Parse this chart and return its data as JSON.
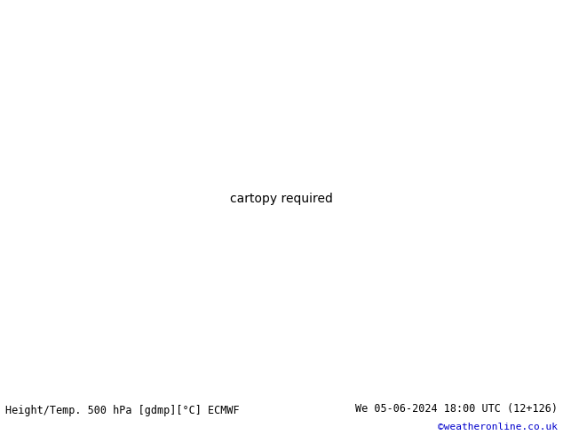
{
  "title_left": "Height/Temp. 500 hPa [gdmp][°C] ECMWF",
  "title_right": "We 05-06-2024 18:00 UTC (12+126)",
  "credit": "©weatheronline.co.uk",
  "land_color": "#c8f0a0",
  "sea_color": "#e8f4f8",
  "border_color": "#aaaaaa",
  "country_color": "#aaaaaa",
  "fig_width": 6.34,
  "fig_height": 4.9,
  "dpi": 100,
  "bottom_bar_color": "#ffffff",
  "bottom_text_color": "#000000",
  "credit_color": "#0000cc",
  "contour_black_color": "#000000",
  "contour_orange_color": "#ff8800",
  "contour_red_color": "#ff0000",
  "contour_green_color": "#00aa00",
  "contour_pink_color": "#ff00ff",
  "extent": [
    -15,
    110,
    5,
    65
  ],
  "map_bg": "#c8f0a0"
}
